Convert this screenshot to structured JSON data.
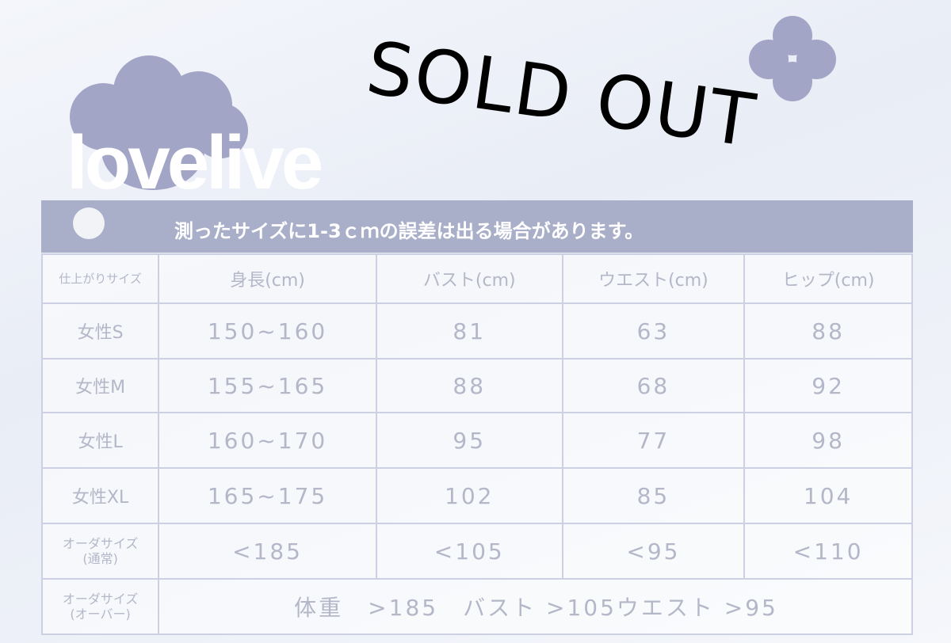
{
  "logo": "lovelive",
  "banner": "測ったサイズに1-3ｃｍの誤差は出る場合があります。",
  "stamp": "SOLD OUT",
  "colors": {
    "banner": "#a9aec9",
    "logo_flower": "#a2a5c6",
    "grid": "#cdd0e2",
    "text": "#b4b7c8"
  },
  "table": {
    "headers": [
      "仕上がりサイズ",
      "身長(cm)",
      "バスト(cm)",
      "ウエスト(cm)",
      "ヒップ(cm)"
    ],
    "rows": [
      {
        "size": "女性S",
        "height": "150~160",
        "bust": "81",
        "waist": "63",
        "hip": "88"
      },
      {
        "size": "女性M",
        "height": "155~165",
        "bust": "88",
        "waist": "68",
        "hip": "92"
      },
      {
        "size": "女性L",
        "height": "160~170",
        "bust": "95",
        "waist": "77",
        "hip": "98"
      },
      {
        "size": "女性XL",
        "height": "165~175",
        "bust": "102",
        "waist": "85",
        "hip": "104"
      }
    ],
    "order_normal": {
      "label": "オーダサイズ",
      "sub": "(通常)",
      "height": "<185",
      "bust": "<105",
      "waist": "<95",
      "hip": "<110"
    },
    "order_over": {
      "label": "オーダサイズ",
      "sub": "(オーバー)",
      "value": "体重　>185　バスト >105ウエスト >95"
    }
  }
}
